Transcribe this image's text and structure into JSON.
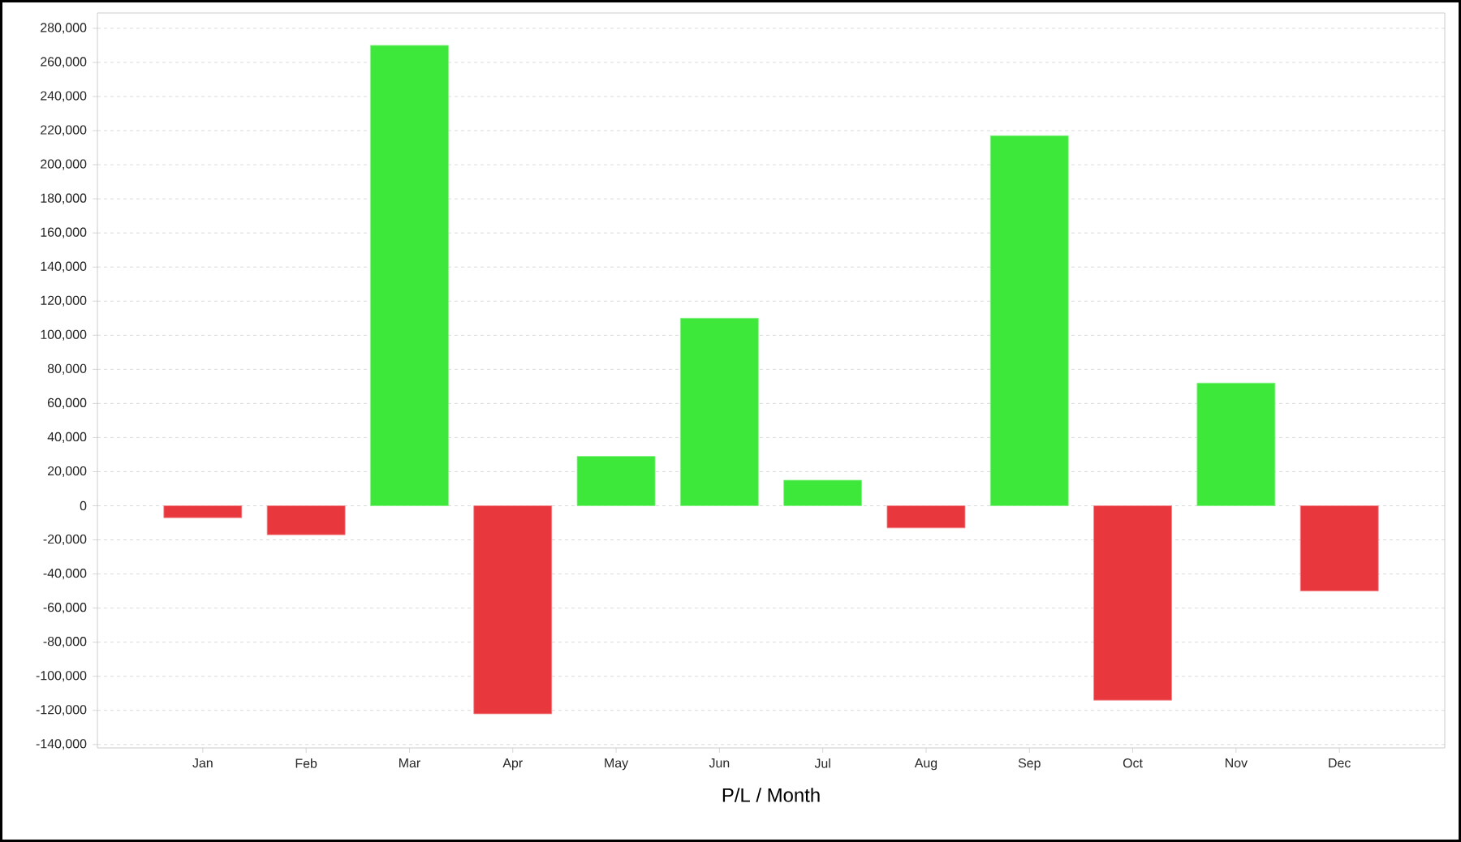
{
  "chart_data": {
    "type": "bar",
    "xlabel": "P/L / Month",
    "categories": [
      "Jan",
      "Feb",
      "Mar",
      "Apr",
      "May",
      "Jun",
      "Jul",
      "Aug",
      "Sep",
      "Oct",
      "Nov",
      "Dec"
    ],
    "values": [
      -7000,
      -17000,
      270000,
      -122000,
      29000,
      110000,
      15000,
      -13000,
      217000,
      -114000,
      72000,
      -50000
    ],
    "colors": [
      "#e8383d",
      "#e8383d",
      "#3ee83a",
      "#e8383d",
      "#3ee83a",
      "#3ee83a",
      "#3ee83a",
      "#e8383d",
      "#3ee83a",
      "#e8383d",
      "#3ee83a",
      "#e8383d"
    ],
    "ylim": [
      -142000,
      289000
    ],
    "yticks": [
      {
        "value": -140000,
        "label": "-140,000"
      },
      {
        "value": -120000,
        "label": "-120,000"
      },
      {
        "value": -100000,
        "label": "-100,000"
      },
      {
        "value": -80000,
        "label": "-80,000"
      },
      {
        "value": -60000,
        "label": "-60,000"
      },
      {
        "value": -40000,
        "label": "-40,000"
      },
      {
        "value": -20000,
        "label": "-20,000"
      },
      {
        "value": 0,
        "label": "0"
      },
      {
        "value": 20000,
        "label": "20,000"
      },
      {
        "value": 40000,
        "label": "40,000"
      },
      {
        "value": 60000,
        "label": "60,000"
      },
      {
        "value": 80000,
        "label": "80,000"
      },
      {
        "value": 100000,
        "label": "100,000"
      },
      {
        "value": 120000,
        "label": "120,000"
      },
      {
        "value": 140000,
        "label": "140,000"
      },
      {
        "value": 160000,
        "label": "160,000"
      },
      {
        "value": 180000,
        "label": "180,000"
      },
      {
        "value": 200000,
        "label": "200,000"
      },
      {
        "value": 220000,
        "label": "220,000"
      },
      {
        "value": 240000,
        "label": "240,000"
      },
      {
        "value": 260000,
        "label": "260,000"
      },
      {
        "value": 280000,
        "label": "280,000"
      }
    ],
    "grid": "y"
  }
}
